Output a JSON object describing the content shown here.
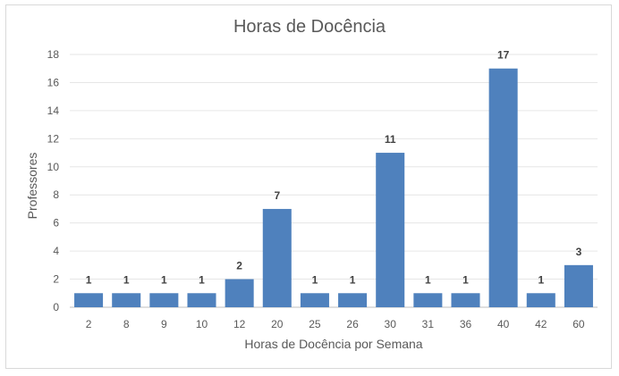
{
  "chart_data": {
    "type": "bar",
    "title": "Horas de Docência",
    "xlabel": "Horas de Docência por Semana",
    "ylabel": "Professores",
    "categories": [
      "2",
      "8",
      "9",
      "10",
      "12",
      "20",
      "25",
      "26",
      "30",
      "31",
      "36",
      "40",
      "42",
      "60"
    ],
    "values": [
      1,
      1,
      1,
      1,
      2,
      7,
      1,
      1,
      11,
      1,
      1,
      17,
      1,
      3
    ],
    "ylim": [
      0,
      18
    ],
    "yticks": [
      0,
      2,
      4,
      6,
      8,
      10,
      12,
      14,
      16,
      18
    ],
    "grid": true,
    "legend": "none",
    "bar_color": "#4f81bd"
  }
}
